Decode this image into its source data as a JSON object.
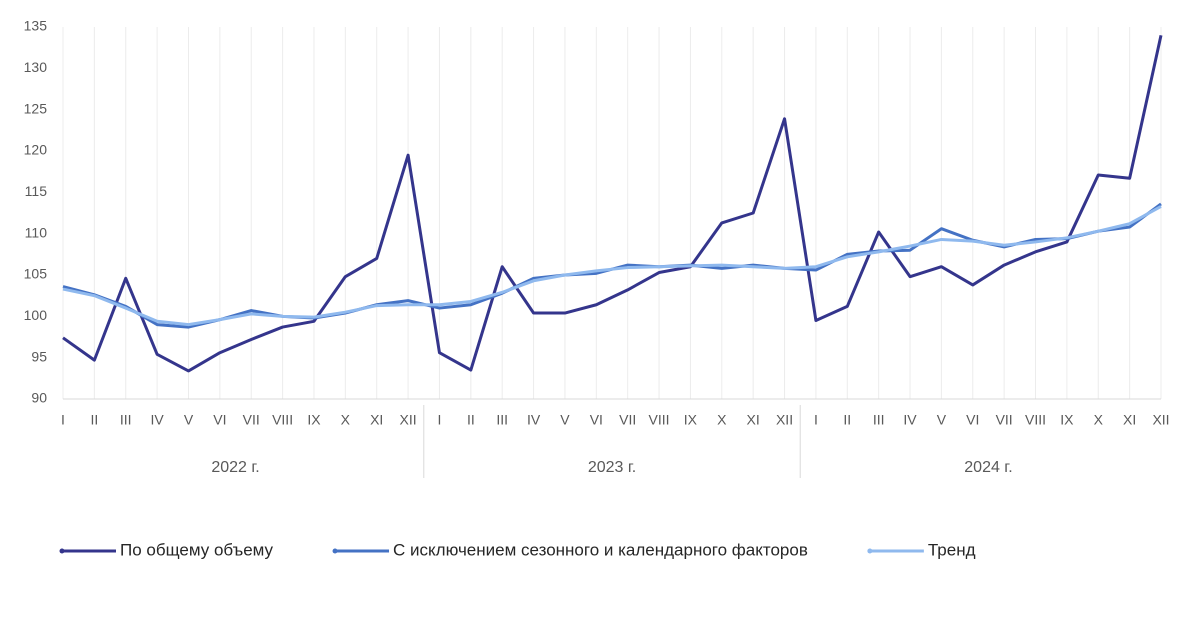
{
  "chart_data": {
    "type": "line",
    "categories": [
      "I",
      "II",
      "III",
      "IV",
      "V",
      "VI",
      "VII",
      "VIII",
      "IX",
      "X",
      "XI",
      "XII",
      "I",
      "II",
      "III",
      "IV",
      "V",
      "VI",
      "VII",
      "VIII",
      "IX",
      "X",
      "XI",
      "XII",
      "I",
      "II",
      "III",
      "IV",
      "V",
      "VI",
      "VII",
      "VIII",
      "IX",
      "X",
      "XI",
      "XII"
    ],
    "x_groups": [
      "2022 г.",
      "2023 г.",
      "2024 г."
    ],
    "series": [
      {
        "name": "По общему объему",
        "color": "#34358c",
        "values": [
          97.4,
          94.7,
          104.6,
          95.4,
          93.4,
          95.6,
          97.2,
          98.7,
          99.4,
          104.8,
          107.0,
          119.5,
          95.6,
          93.5,
          106.0,
          100.4,
          100.4,
          101.4,
          103.2,
          105.3,
          106.0,
          111.3,
          112.5,
          123.9,
          99.5,
          101.2,
          110.2,
          104.8,
          106.0,
          103.8,
          106.2,
          107.8,
          109.0,
          117.1,
          116.7,
          134.0
        ]
      },
      {
        "name": "С исключением сезонного и календарного факторов",
        "color": "#4472c4",
        "values": [
          103.6,
          102.6,
          101.2,
          99.0,
          98.7,
          99.6,
          100.7,
          100.0,
          99.8,
          100.4,
          101.4,
          101.9,
          101.0,
          101.4,
          102.8,
          104.6,
          105.0,
          105.2,
          106.2,
          106.0,
          106.2,
          105.8,
          106.2,
          105.8,
          105.6,
          107.5,
          107.9,
          108.0,
          110.6,
          109.2,
          108.4,
          109.3,
          109.4,
          110.3,
          110.8,
          113.6
        ]
      },
      {
        "name": "Тренд",
        "color": "#8fb9ee",
        "values": [
          103.3,
          102.5,
          101.0,
          99.4,
          99.0,
          99.6,
          100.3,
          100.0,
          99.9,
          100.5,
          101.3,
          101.4,
          101.4,
          101.8,
          102.9,
          104.3,
          105.0,
          105.5,
          105.9,
          106.0,
          106.1,
          106.2,
          106.0,
          105.8,
          106.0,
          107.2,
          107.8,
          108.5,
          109.3,
          109.1,
          108.6,
          109.0,
          109.5,
          110.3,
          111.2,
          113.3
        ]
      }
    ],
    "ylim": [
      90,
      135
    ],
    "yticks": [
      90,
      95,
      100,
      105,
      110,
      115,
      120,
      125,
      130,
      135
    ],
    "grid": true,
    "legend": "bottom"
  }
}
